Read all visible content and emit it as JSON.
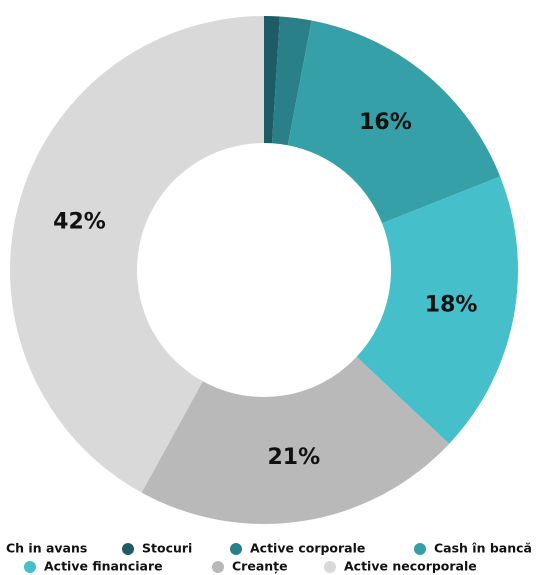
{
  "chart_data": {
    "type": "donut",
    "categories": [
      "Ch in avans",
      "Stocuri",
      "Active corporale",
      "Cash în bancă",
      "Active financiare",
      "Creanțe",
      "Active necorporale"
    ],
    "values": [
      0,
      1,
      2,
      16,
      18,
      21,
      42
    ],
    "value_labels": [
      null,
      null,
      null,
      "16%",
      "18%",
      "21%",
      "42%"
    ],
    "colors": [
      "#123f46",
      "#1d5c65",
      "#2a8088",
      "#36a0a8",
      "#45bfc9",
      "#b9b9b9",
      "#d9d9d9"
    ],
    "legend": "bottom"
  }
}
